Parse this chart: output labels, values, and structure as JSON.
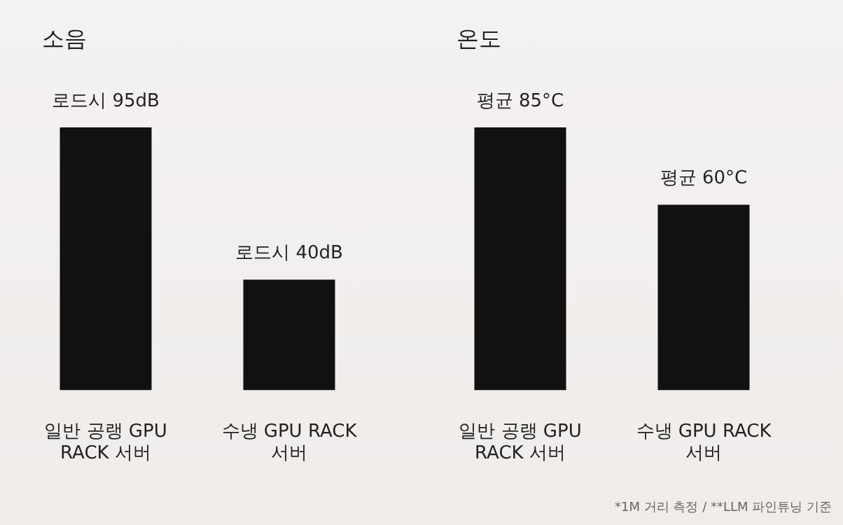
{
  "chart_data": [
    {
      "type": "bar",
      "title": "소음",
      "categories": [
        "일반 공랭 GPU RACK 서버",
        "수냉 GPU RACK 서버"
      ],
      "values": [
        95,
        40
      ],
      "value_labels": [
        "로드시 95dB",
        "로드시 40dB"
      ],
      "color": "#111111"
    },
    {
      "type": "bar",
      "title": "온도",
      "categories": [
        "일반 공랭 GPU RACK 서버",
        "수냉 GPU RACK 서버"
      ],
      "values": [
        85,
        60
      ],
      "value_labels": [
        "평균 85°C",
        "평균 60°C"
      ],
      "color": "#111111",
      "annotations": [
        "*1M 거리 측정 / **LLM 파인튜닝 기준"
      ]
    }
  ]
}
